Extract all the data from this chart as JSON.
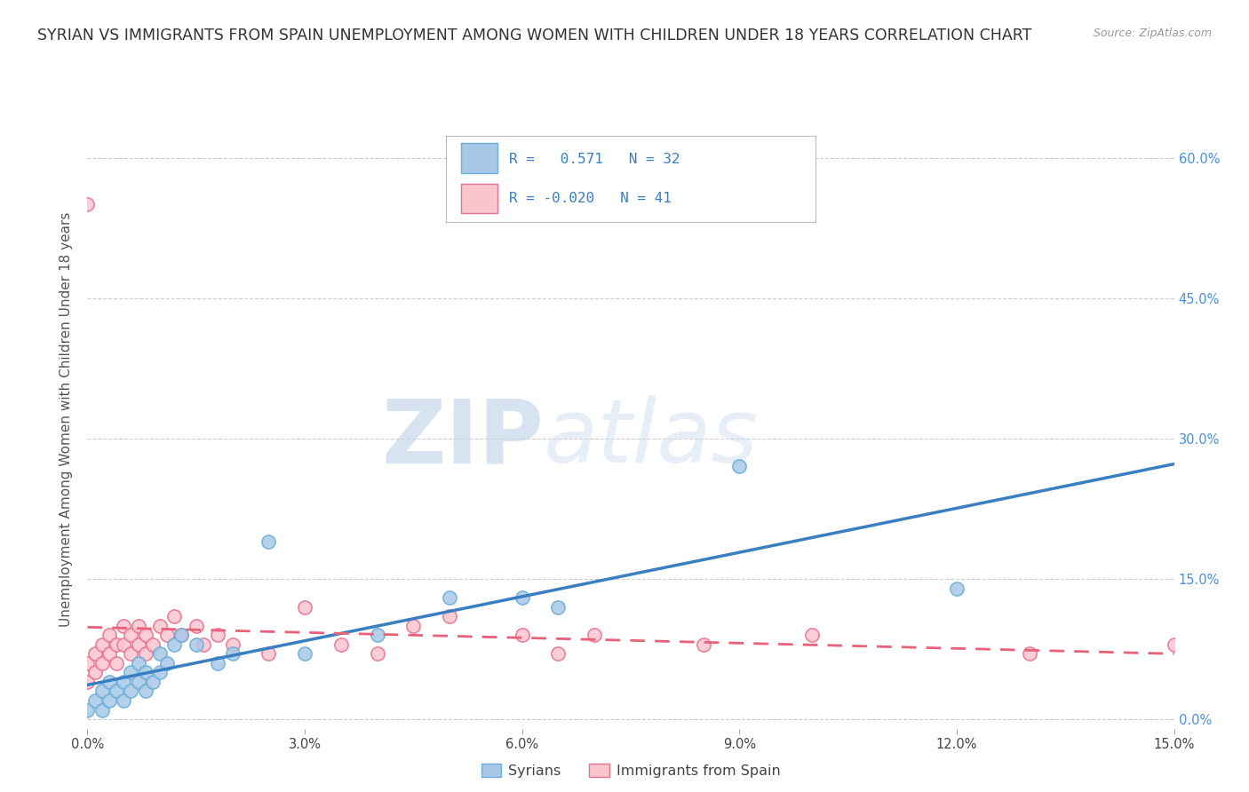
{
  "title": "SYRIAN VS IMMIGRANTS FROM SPAIN UNEMPLOYMENT AMONG WOMEN WITH CHILDREN UNDER 18 YEARS CORRELATION CHART",
  "source": "Source: ZipAtlas.com",
  "ylabel": "Unemployment Among Women with Children Under 18 years",
  "xmin": 0.0,
  "xmax": 0.15,
  "ymin": -0.01,
  "ymax": 0.65,
  "yticks": [
    0.0,
    0.15,
    0.3,
    0.45,
    0.6
  ],
  "ytick_labels": [
    "0.0%",
    "15.0%",
    "30.0%",
    "45.0%",
    "60.0%"
  ],
  "xticks": [
    0.0,
    0.03,
    0.06,
    0.09,
    0.12,
    0.15
  ],
  "xtick_labels": [
    "0.0%",
    "3.0%",
    "6.0%",
    "9.0%",
    "12.0%",
    "15.0%"
  ],
  "legend_label1": "Syrians",
  "legend_label2": "Immigrants from Spain",
  "r1": "0.571",
  "n1": "32",
  "r2": "-0.020",
  "n2": "41",
  "blue_color": "#A8C8E8",
  "blue_edge_color": "#6BAED6",
  "pink_color": "#F9C6CF",
  "pink_edge_color": "#E87090",
  "blue_line_color": "#3A7FC1",
  "pink_line_color": "#E8607A",
  "watermark_zip": "ZIP",
  "watermark_atlas": "atlas",
  "background_color": "#FFFFFF",
  "grid_color": "#CCCCCC",
  "syrians_x": [
    0.0,
    0.001,
    0.002,
    0.002,
    0.003,
    0.003,
    0.004,
    0.005,
    0.005,
    0.006,
    0.006,
    0.007,
    0.007,
    0.008,
    0.008,
    0.009,
    0.01,
    0.01,
    0.011,
    0.012,
    0.013,
    0.015,
    0.018,
    0.02,
    0.025,
    0.03,
    0.04,
    0.05,
    0.06,
    0.065,
    0.09,
    0.12
  ],
  "syrians_y": [
    0.01,
    0.02,
    0.01,
    0.03,
    0.02,
    0.04,
    0.03,
    0.02,
    0.04,
    0.03,
    0.05,
    0.04,
    0.06,
    0.03,
    0.05,
    0.04,
    0.05,
    0.07,
    0.06,
    0.08,
    0.09,
    0.08,
    0.06,
    0.07,
    0.19,
    0.07,
    0.09,
    0.13,
    0.13,
    0.12,
    0.27,
    0.14
  ],
  "spain_x": [
    0.0,
    0.0,
    0.0,
    0.001,
    0.001,
    0.002,
    0.002,
    0.003,
    0.003,
    0.004,
    0.004,
    0.005,
    0.005,
    0.006,
    0.006,
    0.007,
    0.007,
    0.008,
    0.008,
    0.009,
    0.01,
    0.011,
    0.012,
    0.013,
    0.015,
    0.016,
    0.018,
    0.02,
    0.025,
    0.03,
    0.035,
    0.04,
    0.045,
    0.05,
    0.06,
    0.065,
    0.07,
    0.085,
    0.1,
    0.13,
    0.15
  ],
  "spain_y": [
    0.55,
    0.06,
    0.04,
    0.07,
    0.05,
    0.08,
    0.06,
    0.09,
    0.07,
    0.08,
    0.06,
    0.1,
    0.08,
    0.09,
    0.07,
    0.1,
    0.08,
    0.09,
    0.07,
    0.08,
    0.1,
    0.09,
    0.11,
    0.09,
    0.1,
    0.08,
    0.09,
    0.08,
    0.07,
    0.12,
    0.08,
    0.07,
    0.1,
    0.11,
    0.09,
    0.07,
    0.09,
    0.08,
    0.09,
    0.07,
    0.08
  ],
  "title_fontsize": 12.5,
  "axis_label_fontsize": 11,
  "tick_fontsize": 10.5
}
